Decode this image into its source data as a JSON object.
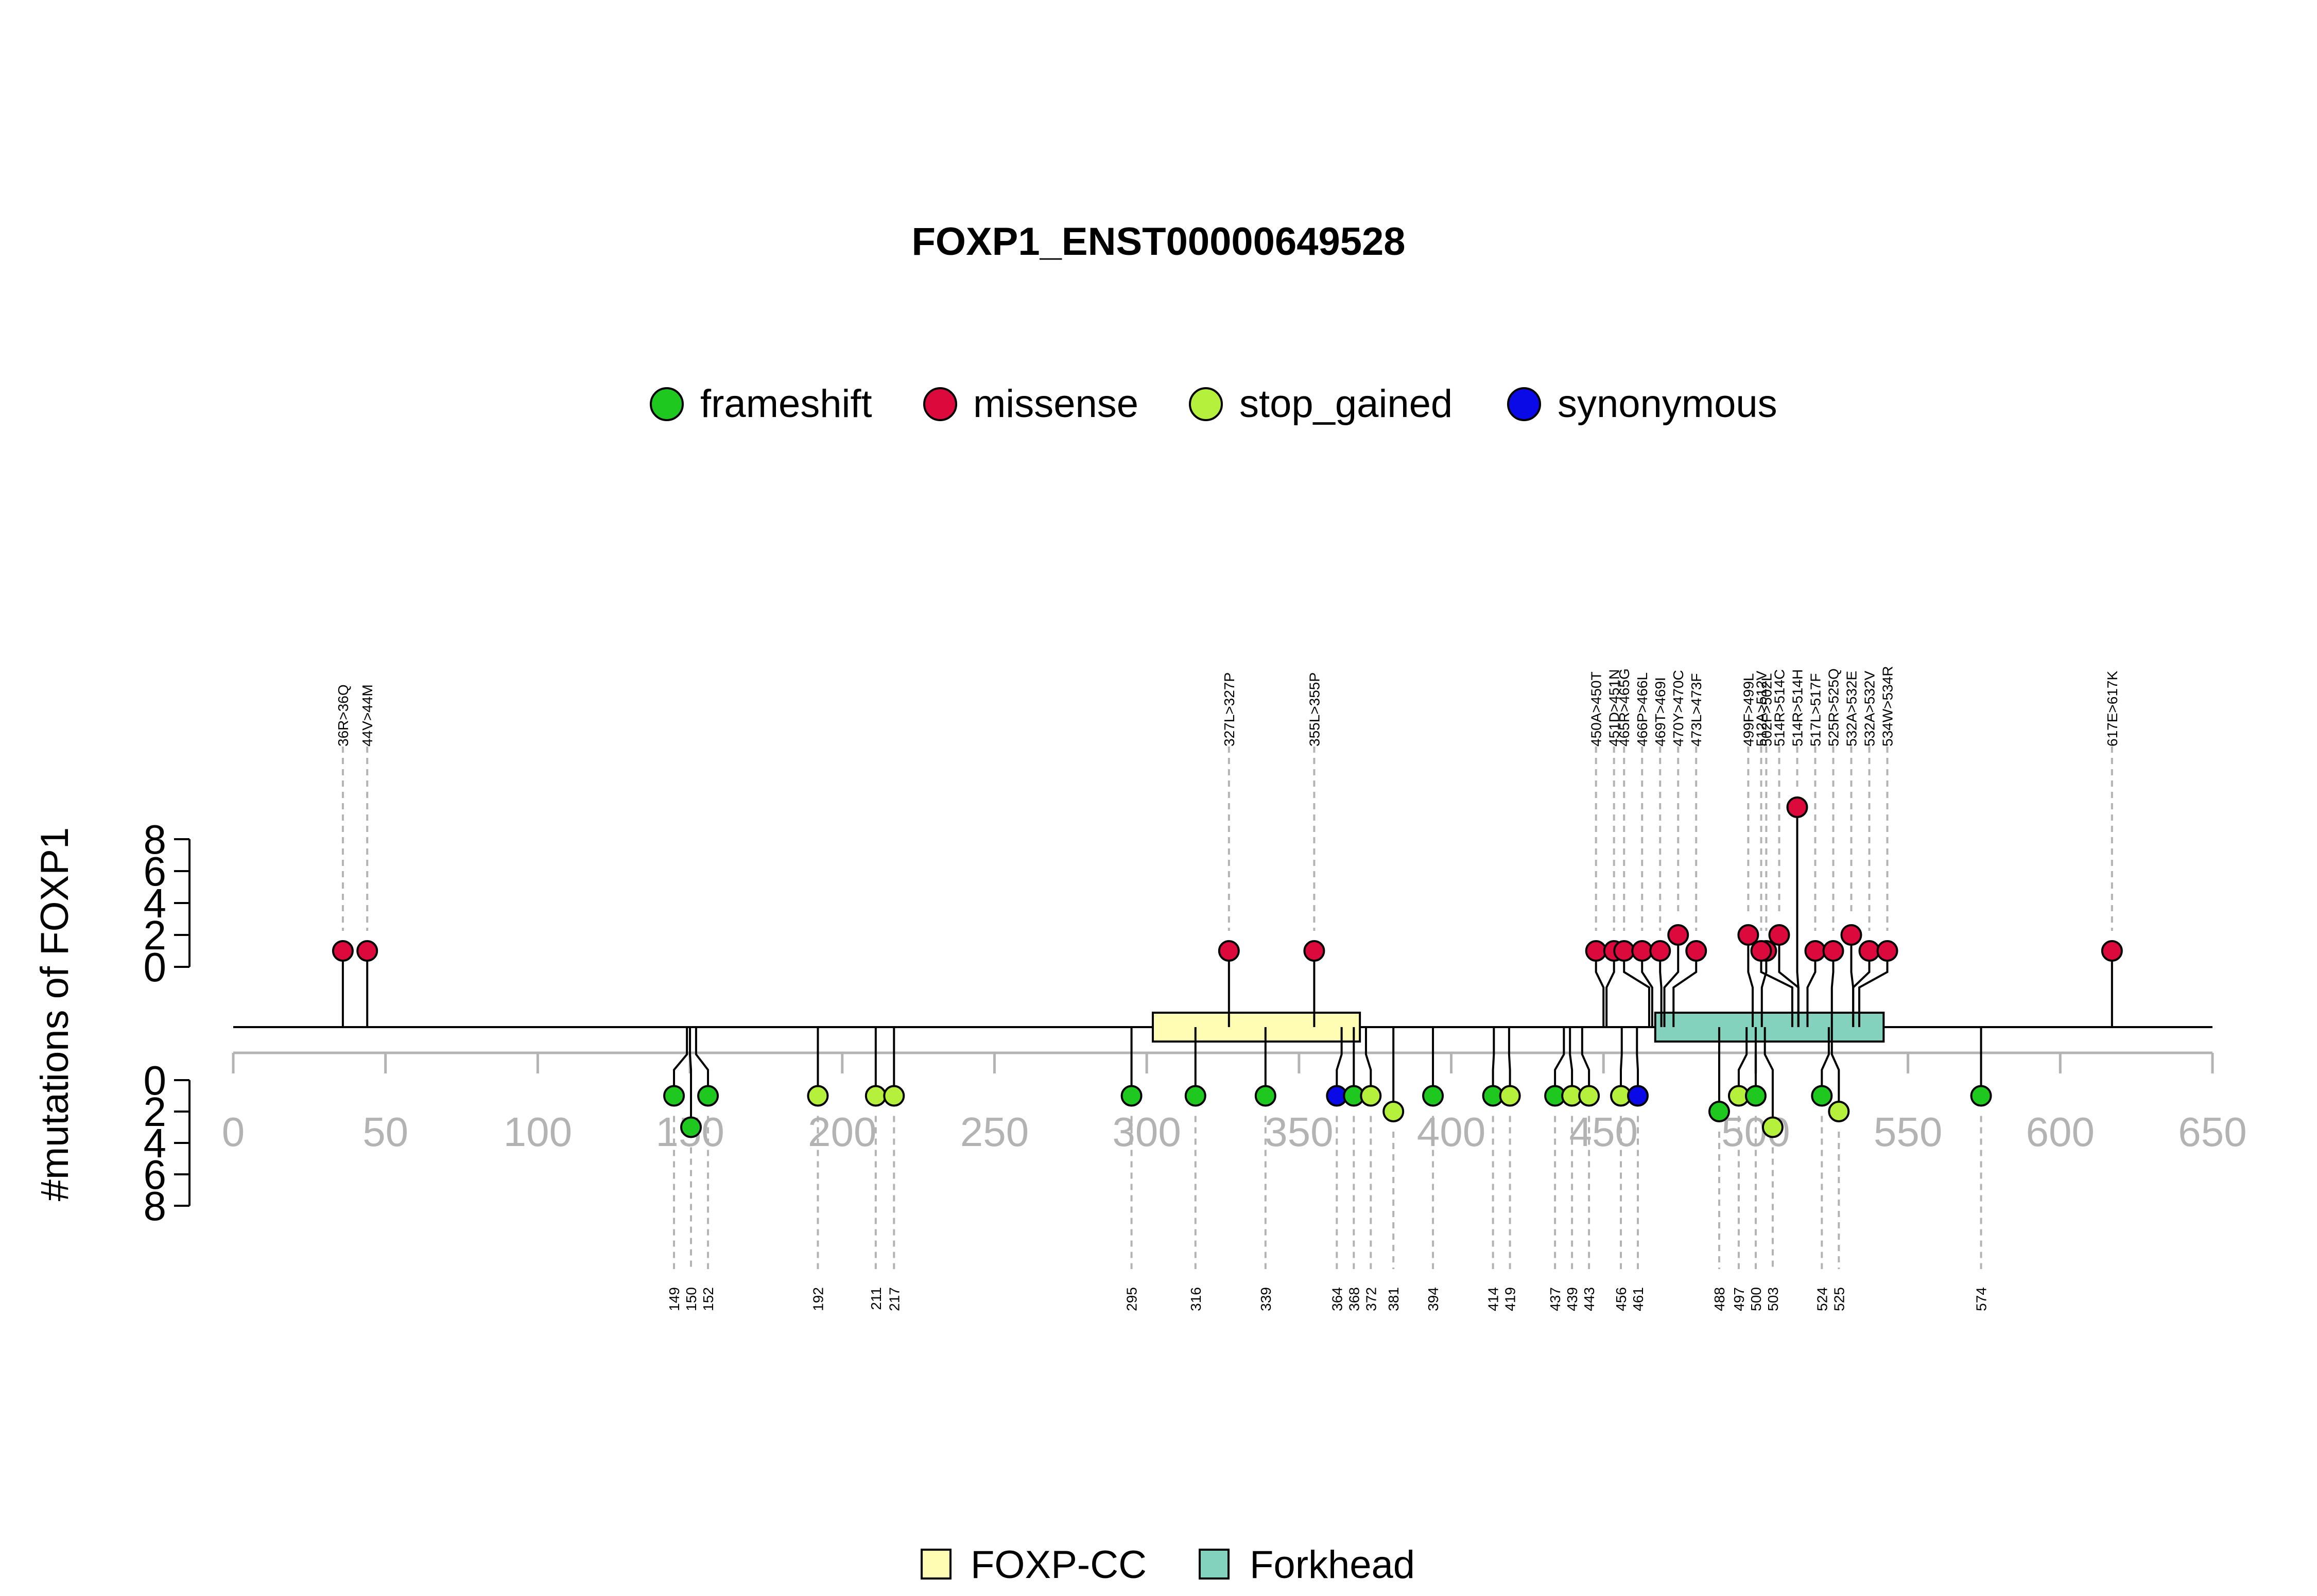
{
  "chart_data": {
    "type": "lollipop",
    "title": "FOXP1_ENST00000649528",
    "ylabel": "#mutations of FOXP1",
    "xlim": [
      0,
      650
    ],
    "x_ticks": [
      0,
      50,
      100,
      150,
      200,
      250,
      300,
      350,
      400,
      450,
      500,
      550,
      600,
      650
    ],
    "y_ticks": [
      0,
      2,
      4,
      6,
      8
    ],
    "legend_top_position": "top-center",
    "legend_bottom_position": "bottom-center",
    "colors": {
      "frameshift": "#1ec81e",
      "missense": "#dc0a3c",
      "stop_gained": "#b4f03c",
      "synonymous": "#0a0ae6",
      "FOXP-CC": "#fffcb4",
      "Forkhead": "#82d2be"
    },
    "mutation_types": [
      "frameshift",
      "missense",
      "stop_gained",
      "synonymous"
    ],
    "domains": [
      {
        "name": "FOXP-CC",
        "start": 302,
        "end": 370
      },
      {
        "name": "Forkhead",
        "start": 467,
        "end": 542
      }
    ],
    "top": [
      {
        "pos": 36,
        "label": "36R>36Q",
        "type": "missense",
        "count": 1
      },
      {
        "pos": 44,
        "label": "44V>44M",
        "type": "missense",
        "count": 1
      },
      {
        "pos": 327,
        "label": "327L>327P",
        "type": "missense",
        "count": 1
      },
      {
        "pos": 355,
        "label": "355L>355P",
        "type": "missense",
        "count": 1
      },
      {
        "pos": 450,
        "label": "450A>450T",
        "type": "missense",
        "count": 1
      },
      {
        "pos": 451,
        "label": "451D>451N",
        "type": "missense",
        "count": 1
      },
      {
        "pos": 465,
        "label": "465R>465G",
        "type": "missense",
        "count": 1
      },
      {
        "pos": 466,
        "label": "466P>466L",
        "type": "missense",
        "count": 1
      },
      {
        "pos": 469,
        "label": "469T>469I",
        "type": "missense",
        "count": 1
      },
      {
        "pos": 470,
        "label": "470Y>470C",
        "type": "missense",
        "count": 2
      },
      {
        "pos": 473,
        "label": "473L>473F",
        "type": "missense",
        "count": 1
      },
      {
        "pos": 499,
        "label": "499F>499L",
        "type": "missense",
        "count": 2
      },
      {
        "pos": 502,
        "label": "502F>502L",
        "type": "missense",
        "count": 1
      },
      {
        "pos": 512,
        "label": "512A>512V",
        "type": "missense",
        "count": 1
      },
      {
        "pos": 514,
        "label": "514R>514C",
        "type": "missense",
        "count": 2
      },
      {
        "pos": 514,
        "label": "514R>514H",
        "type": "missense",
        "count": 10
      },
      {
        "pos": 517,
        "label": "517L>517F",
        "type": "missense",
        "count": 1
      },
      {
        "pos": 525,
        "label": "525R>525Q",
        "type": "missense",
        "count": 1
      },
      {
        "pos": 532,
        "label": "532A>532E",
        "type": "missense",
        "count": 2
      },
      {
        "pos": 532,
        "label": "532A>532V",
        "type": "missense",
        "count": 1
      },
      {
        "pos": 534,
        "label": "534W>534R",
        "type": "missense",
        "count": 1
      },
      {
        "pos": 617,
        "label": "617E>617K",
        "type": "missense",
        "count": 1
      }
    ],
    "bottom": [
      {
        "pos": 149,
        "label": "149",
        "type": "frameshift",
        "count": 1
      },
      {
        "pos": 150,
        "label": "150",
        "type": "frameshift",
        "count": 3
      },
      {
        "pos": 152,
        "label": "152",
        "type": "frameshift",
        "count": 1
      },
      {
        "pos": 192,
        "label": "192",
        "type": "stop_gained",
        "count": 1
      },
      {
        "pos": 211,
        "label": "211",
        "type": "stop_gained",
        "count": 1
      },
      {
        "pos": 217,
        "label": "217",
        "type": "stop_gained",
        "count": 1
      },
      {
        "pos": 295,
        "label": "295",
        "type": "frameshift",
        "count": 1
      },
      {
        "pos": 316,
        "label": "316",
        "type": "frameshift",
        "count": 1
      },
      {
        "pos": 339,
        "label": "339",
        "type": "frameshift",
        "count": 1
      },
      {
        "pos": 364,
        "label": "364",
        "type": "synonymous",
        "count": 1
      },
      {
        "pos": 368,
        "label": "368",
        "type": "frameshift",
        "count": 1
      },
      {
        "pos": 372,
        "label": "372",
        "type": "stop_gained",
        "count": 1
      },
      {
        "pos": 381,
        "label": "381",
        "type": "stop_gained",
        "count": 2
      },
      {
        "pos": 394,
        "label": "394",
        "type": "frameshift",
        "count": 1
      },
      {
        "pos": 414,
        "label": "414",
        "type": "frameshift",
        "count": 1
      },
      {
        "pos": 419,
        "label": "419",
        "type": "stop_gained",
        "count": 1
      },
      {
        "pos": 437,
        "label": "437",
        "type": "frameshift",
        "count": 1
      },
      {
        "pos": 439,
        "label": "439",
        "type": "stop_gained",
        "count": 1
      },
      {
        "pos": 443,
        "label": "443",
        "type": "stop_gained",
        "count": 1
      },
      {
        "pos": 456,
        "label": "456",
        "type": "stop_gained",
        "count": 1
      },
      {
        "pos": 461,
        "label": "461",
        "type": "synonymous",
        "count": 1
      },
      {
        "pos": 488,
        "label": "488",
        "type": "frameshift",
        "count": 2
      },
      {
        "pos": 497,
        "label": "497",
        "type": "stop_gained",
        "count": 1
      },
      {
        "pos": 500,
        "label": "500",
        "type": "frameshift",
        "count": 1
      },
      {
        "pos": 503,
        "label": "503",
        "type": "stop_gained",
        "count": 3
      },
      {
        "pos": 524,
        "label": "524",
        "type": "frameshift",
        "count": 1
      },
      {
        "pos": 525,
        "label": "525",
        "type": "stop_gained",
        "count": 2
      },
      {
        "pos": 574,
        "label": "574",
        "type": "frameshift",
        "count": 1
      }
    ]
  }
}
